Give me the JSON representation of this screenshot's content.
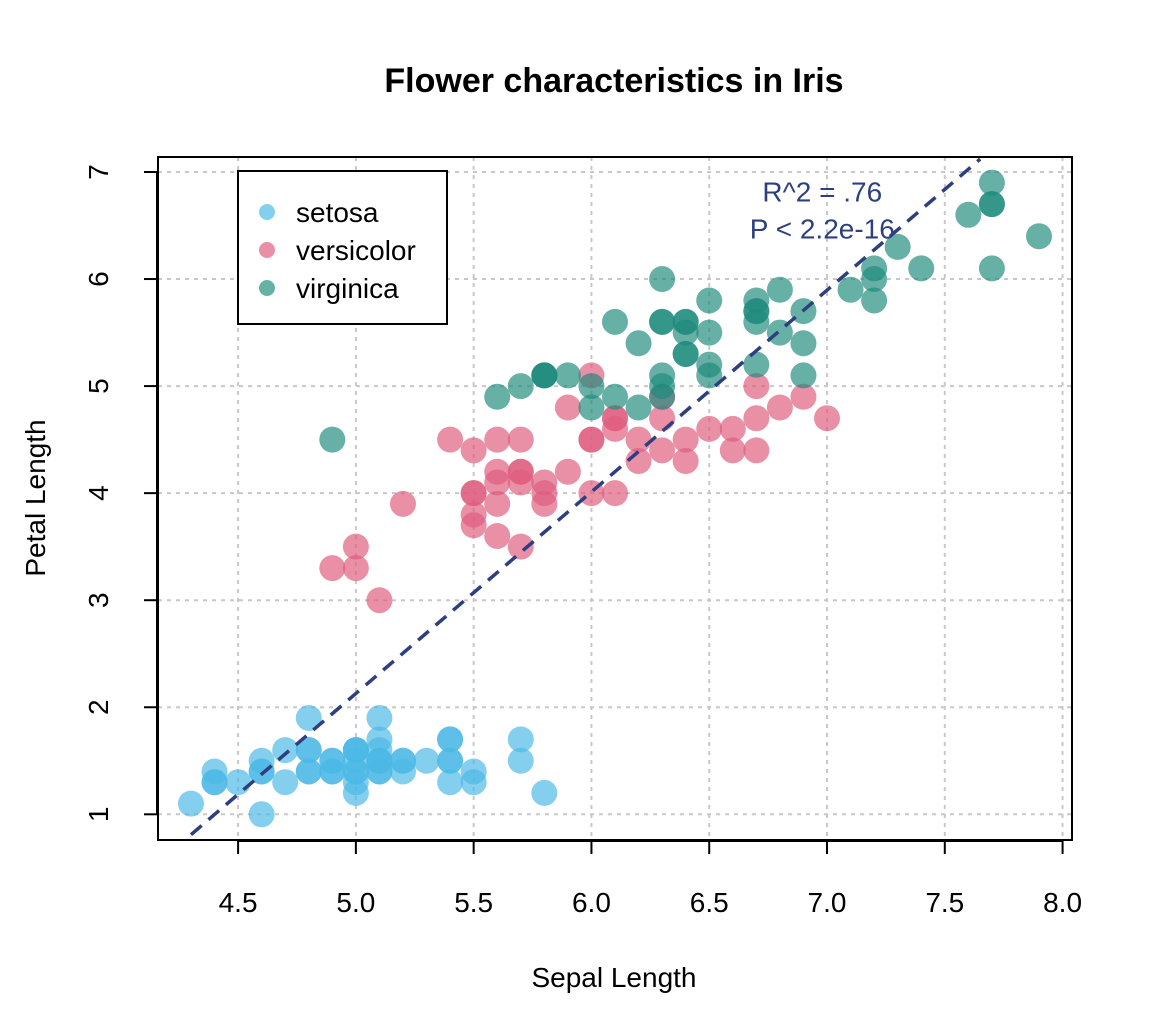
{
  "chart_data": {
    "type": "scatter",
    "title": "Flower characteristics in Iris",
    "xlabel": "Sepal Length",
    "ylabel": "Petal Length",
    "xlim": [
      4.16,
      8.04
    ],
    "ylim": [
      0.76,
      7.14
    ],
    "xticks": [
      4.5,
      5.0,
      5.5,
      6.0,
      6.5,
      7.0,
      7.5,
      8.0
    ],
    "xtick_labels": [
      "4.5",
      "5.0",
      "5.5",
      "6.0",
      "6.5",
      "7.0",
      "7.5",
      "8.0"
    ],
    "yticks": [
      1,
      2,
      3,
      4,
      5,
      6,
      7
    ],
    "ytick_labels": [
      "1",
      "2",
      "3",
      "4",
      "5",
      "6",
      "7"
    ],
    "grid": true,
    "legend_position": "top-left",
    "series": [
      {
        "name": "setosa",
        "color": "#4BB8E6",
        "x": [
          5.1,
          4.9,
          4.7,
          4.6,
          5.0,
          5.4,
          4.6,
          5.0,
          4.4,
          4.9,
          5.4,
          4.8,
          4.8,
          4.3,
          5.8,
          5.7,
          5.4,
          5.1,
          5.7,
          5.1,
          5.4,
          5.1,
          4.6,
          5.1,
          4.8,
          5.0,
          5.0,
          5.2,
          5.2,
          4.7,
          4.8,
          5.4,
          5.2,
          5.5,
          4.9,
          5.0,
          5.5,
          4.9,
          4.4,
          5.1,
          5.0,
          4.5,
          4.4,
          5.0,
          5.1,
          4.8,
          5.1,
          4.6,
          5.3,
          5.0
        ],
        "y": [
          1.4,
          1.4,
          1.3,
          1.5,
          1.4,
          1.7,
          1.4,
          1.5,
          1.4,
          1.5,
          1.5,
          1.6,
          1.4,
          1.1,
          1.2,
          1.5,
          1.3,
          1.4,
          1.7,
          1.5,
          1.7,
          1.5,
          1.0,
          1.7,
          1.9,
          1.6,
          1.6,
          1.5,
          1.4,
          1.6,
          1.6,
          1.5,
          1.5,
          1.4,
          1.5,
          1.2,
          1.3,
          1.4,
          1.3,
          1.5,
          1.3,
          1.3,
          1.3,
          1.6,
          1.9,
          1.4,
          1.6,
          1.4,
          1.5,
          1.4
        ]
      },
      {
        "name": "versicolor",
        "color": "#DE5C7E",
        "x": [
          7.0,
          6.4,
          6.9,
          5.5,
          6.5,
          5.7,
          6.3,
          4.9,
          6.6,
          5.2,
          5.0,
          5.9,
          6.0,
          6.1,
          5.6,
          6.7,
          5.6,
          5.8,
          6.2,
          5.6,
          5.9,
          6.1,
          6.3,
          6.1,
          6.4,
          6.6,
          6.8,
          6.7,
          6.0,
          5.7,
          5.5,
          5.5,
          5.8,
          6.0,
          5.4,
          6.0,
          6.7,
          6.3,
          5.6,
          5.5,
          5.5,
          6.1,
          5.8,
          5.0,
          5.6,
          5.7,
          5.7,
          6.2,
          5.1,
          5.7
        ],
        "y": [
          4.7,
          4.5,
          4.9,
          4.0,
          4.6,
          4.5,
          4.7,
          3.3,
          4.6,
          3.9,
          3.5,
          4.2,
          4.0,
          4.7,
          3.6,
          4.4,
          4.5,
          4.1,
          4.5,
          3.9,
          4.8,
          4.0,
          4.9,
          4.7,
          4.3,
          4.4,
          4.8,
          5.0,
          4.5,
          3.5,
          3.8,
          3.7,
          3.9,
          5.1,
          4.5,
          4.5,
          4.7,
          4.4,
          4.1,
          4.0,
          4.4,
          4.6,
          4.0,
          3.3,
          4.2,
          4.2,
          4.2,
          4.3,
          3.0,
          4.1
        ]
      },
      {
        "name": "virginica",
        "color": "#1E8A7C",
        "x": [
          6.3,
          5.8,
          7.1,
          6.3,
          6.5,
          7.6,
          4.9,
          7.3,
          6.7,
          7.2,
          6.5,
          6.4,
          6.8,
          5.7,
          5.8,
          6.4,
          6.5,
          7.7,
          7.7,
          6.0,
          6.9,
          5.6,
          7.7,
          6.3,
          6.7,
          7.2,
          6.2,
          6.1,
          6.4,
          7.2,
          7.4,
          7.9,
          6.4,
          6.3,
          6.1,
          7.7,
          6.3,
          6.4,
          6.0,
          6.9,
          6.7,
          6.9,
          5.8,
          6.8,
          6.7,
          6.7,
          6.3,
          6.5,
          6.2,
          5.9
        ],
        "y": [
          6.0,
          5.1,
          5.9,
          5.6,
          5.8,
          6.6,
          4.5,
          6.3,
          5.8,
          6.1,
          5.1,
          5.3,
          5.5,
          5.0,
          5.1,
          5.3,
          5.5,
          6.7,
          6.9,
          5.0,
          5.7,
          4.9,
          6.7,
          4.9,
          5.7,
          6.0,
          4.8,
          4.9,
          5.6,
          5.8,
          6.1,
          6.4,
          5.6,
          5.1,
          5.6,
          6.1,
          5.6,
          5.5,
          4.8,
          5.4,
          5.6,
          5.1,
          5.1,
          5.9,
          5.7,
          5.2,
          5.0,
          5.2,
          5.4,
          5.1
        ]
      }
    ],
    "regression_line": {
      "x": [
        4.3,
        7.65
      ],
      "y": [
        0.81,
        7.12
      ],
      "color": "#2E3F7F",
      "style": "dashed"
    },
    "annotations": [
      {
        "text": "R^2 = .76",
        "x": 6.98,
        "y": 6.82,
        "color": "#2E3F7F"
      },
      {
        "text": "P < 2.2e-16",
        "x": 6.98,
        "y": 6.47,
        "color": "#2E3F7F"
      }
    ]
  }
}
